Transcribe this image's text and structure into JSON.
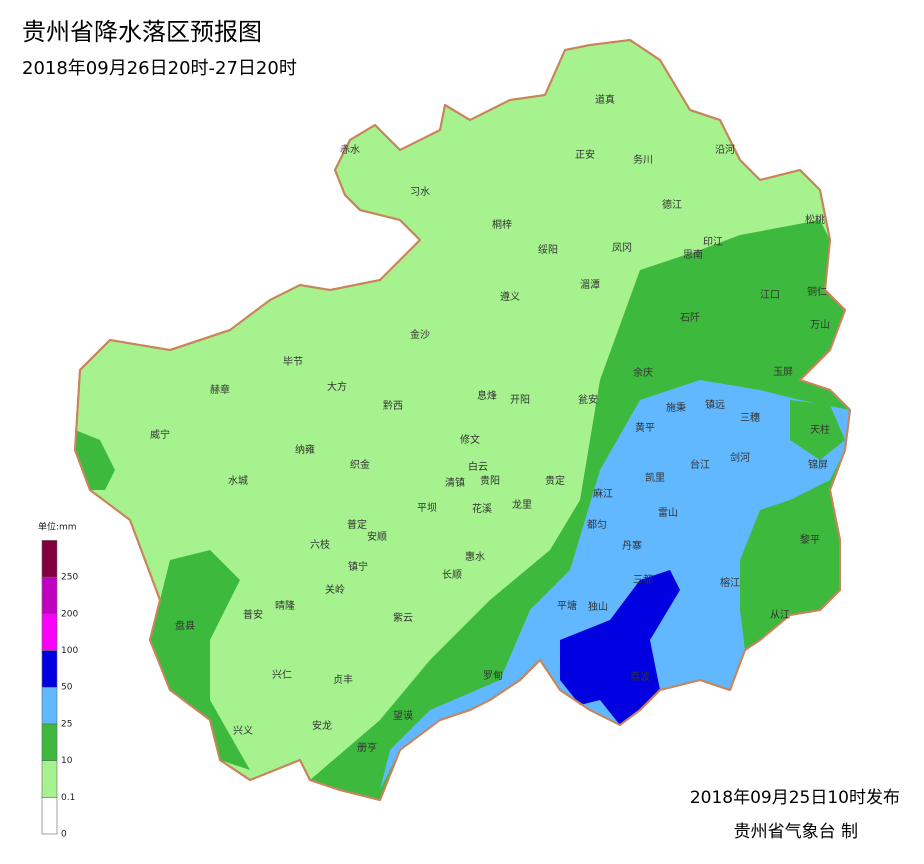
{
  "header": {
    "title": "贵州省降水落区预报图",
    "subtitle": "2018年09月26日20时-27日20时"
  },
  "legend": {
    "unit": "单位:mm",
    "levels": [
      0,
      0.1,
      10,
      25,
      50,
      100,
      200,
      250
    ],
    "colors": [
      "#ffffff",
      "#a6f28f",
      "#3dba3d",
      "#61b8ff",
      "#0000e1",
      "#fa00fa",
      "#c000c0",
      "#800040"
    ]
  },
  "labels": [
    "赤水",
    "习水",
    "道真",
    "正安",
    "务川",
    "沿河",
    "桐梓",
    "绥阳",
    "凤冈",
    "德江",
    "印江",
    "思南",
    "松桃",
    "遵义",
    "湄潭",
    "江口",
    "铜仁",
    "石阡",
    "万山",
    "金沙",
    "毕节",
    "大方",
    "赫章",
    "黔西",
    "息烽",
    "开阳",
    "余庆",
    "玉屏",
    "瓮安",
    "黄平",
    "施秉",
    "镇远",
    "三穗",
    "天柱",
    "威宁",
    "纳雍",
    "修文",
    "织金",
    "白云",
    "贵阳",
    "清镇",
    "贵定",
    "麻江",
    "凯里",
    "台江",
    "剑河",
    "锦屏",
    "水城",
    "平坝",
    "花溪",
    "龙里",
    "雷山",
    "都匀",
    "普定",
    "安顺",
    "六枝",
    "丹寨",
    "黎平",
    "镇宁",
    "惠水",
    "长顺",
    "三都",
    "关岭",
    "榕江",
    "盘县",
    "晴隆",
    "普安",
    "紫云",
    "平塘",
    "独山",
    "从江",
    "兴仁",
    "贞丰",
    "罗甸",
    "荔波",
    "望谟",
    "兴义",
    "安龙",
    "册亨"
  ],
  "footer": {
    "issued": "2018年09月25日10时发布",
    "agency": "贵州省气象台 制"
  }
}
